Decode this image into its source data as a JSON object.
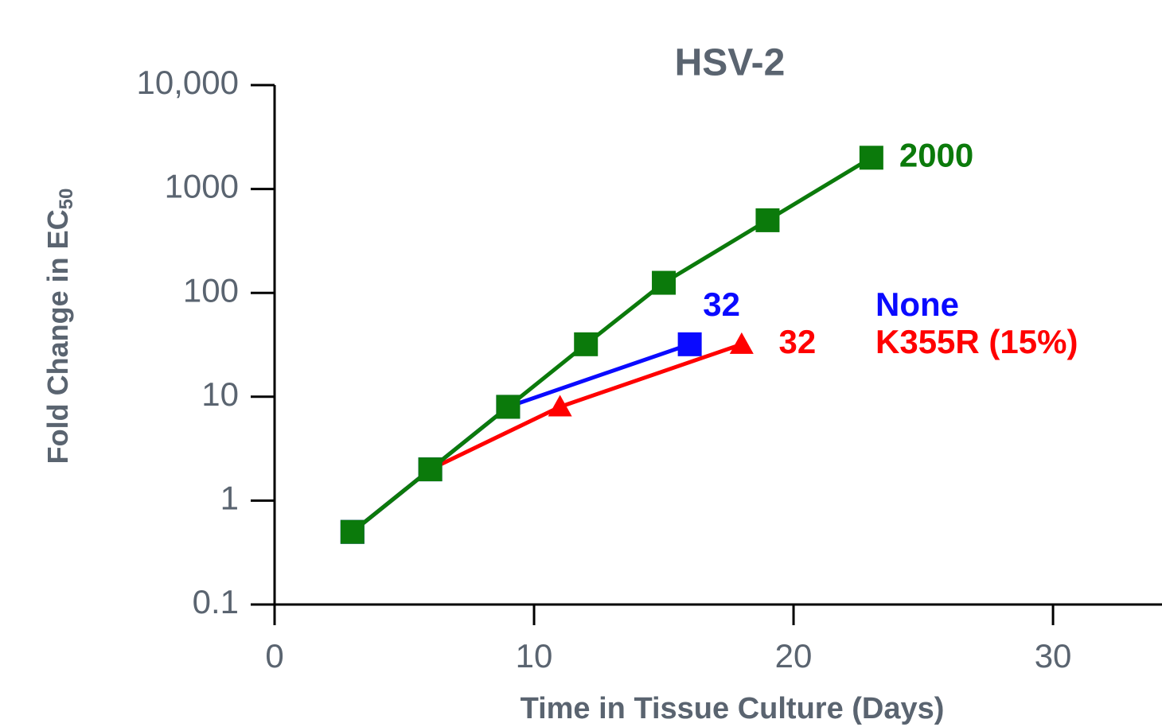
{
  "chart_data": {
    "type": "line",
    "title": "HSV-2",
    "xlabel": "Time in Tissue Culture (Days)",
    "ylabel": {
      "text": "Fold Change in EC",
      "subscript": "50"
    },
    "xlim": [
      0,
      34.2
    ],
    "xticks": [
      0,
      10,
      20,
      30
    ],
    "ylim": [
      0.1,
      10000
    ],
    "yscale": "log",
    "yticks": [
      0.1,
      1,
      10,
      100,
      1000,
      {
        "value": 10000,
        "label": "10,000"
      }
    ],
    "grid": false,
    "series": [
      {
        "name": "K355R (15%)",
        "color": "#ff0000",
        "marker": "triangle",
        "x": [
          3,
          6,
          11,
          18
        ],
        "values": [
          0.5,
          2,
          8,
          32
        ]
      },
      {
        "name": "None",
        "color": "#0a0aff",
        "marker": "square",
        "x": [
          3,
          6,
          9,
          16
        ],
        "values": [
          0.5,
          2,
          8,
          32
        ]
      },
      {
        "color": "#0b7a0b",
        "marker": "square",
        "x": [
          3,
          6,
          9,
          12,
          15,
          19,
          23
        ],
        "values": [
          0.5,
          2,
          8,
          32,
          125,
          500,
          2000
        ]
      }
    ]
  }
}
